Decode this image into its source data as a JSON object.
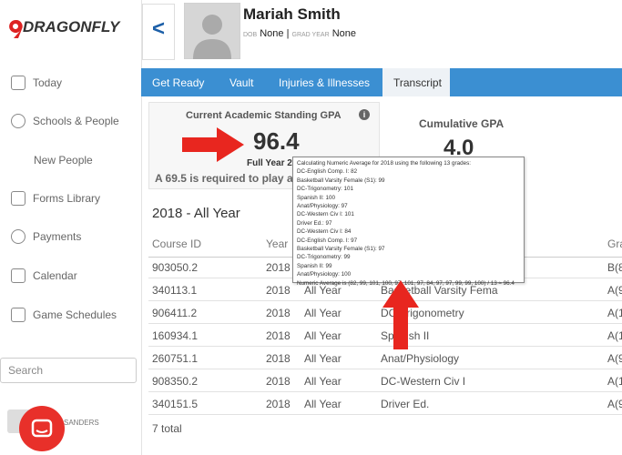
{
  "logo": "DRAGONFLY",
  "nav": [
    "Today",
    "Schools & People",
    "New People",
    "Forms Library",
    "Payments",
    "Calendar",
    "Game Schedules"
  ],
  "search_placeholder": "Search",
  "user": "SANDERS",
  "profile": {
    "back": "<",
    "name": "Mariah Smith",
    "dob_label": "DOB",
    "dob": "None |",
    "grad_label": "GRAD YEAR",
    "grad": "None"
  },
  "tabs": [
    "Get Ready",
    "Vault",
    "Injuries & Illnesses",
    "Transcript"
  ],
  "gpa": {
    "title": "Current Academic Standing GPA",
    "info": "i",
    "value": "96.4",
    "period": "Full Year 2",
    "note": "A 69.5 is required to play at"
  },
  "cumulative": {
    "title": "Cumulative GPA",
    "value": "4.0"
  },
  "tooltip": [
    "Calculating Numeric Average for 2018 using the following 13 grades:",
    "DC-English Comp. I: 82",
    "Basketball Varsity Female (S1): 99",
    "DC-Trigonometry: 101",
    "Spanish II: 100",
    "Anat/Physiology: 97",
    "DC-Western Civ I: 101",
    "Driver Ed.: 97",
    "DC-Western Civ I: 84",
    "DC-English Comp. I: 97",
    "Basketball Varsity Female (S1): 97",
    "DC-Trigonometry: 99",
    "Spanish II: 99",
    "Anat/Physiology: 100",
    "Numeric Average is (82, 99, 101, 100, 97, 101, 97, 84, 97, 97, 99, 99, 100) / 13 ≈ 96.4"
  ],
  "table": {
    "section": "2018 - All Year",
    "headers": {
      "id": "Course ID",
      "year": "Year",
      "grade": "Gra"
    },
    "rows": [
      {
        "id": "903050.2",
        "year": "2018",
        "grade": "B(8"
      },
      {
        "id": "340113.1",
        "year": "2018",
        "term": "All Year",
        "course": "Basketball Varsity Fema",
        "grade": "A(9"
      },
      {
        "id": "906411.2",
        "year": "2018",
        "term": "All Year",
        "course": "DC-Trigonometry",
        "grade": "A(1"
      },
      {
        "id": "160934.1",
        "year": "2018",
        "term": "All Year",
        "course": "Spanish II",
        "grade": "A(1"
      },
      {
        "id": "260751.1",
        "year": "2018",
        "term": "All Year",
        "course": "Anat/Physiology",
        "grade": "A(9"
      },
      {
        "id": "908350.2",
        "year": "2018",
        "term": "All Year",
        "course": "DC-Western Civ I",
        "grade": "A(1"
      },
      {
        "id": "340151.5",
        "year": "2018",
        "term": "All Year",
        "course": "Driver Ed.",
        "grade": "A(9"
      }
    ],
    "total": "7 total"
  }
}
